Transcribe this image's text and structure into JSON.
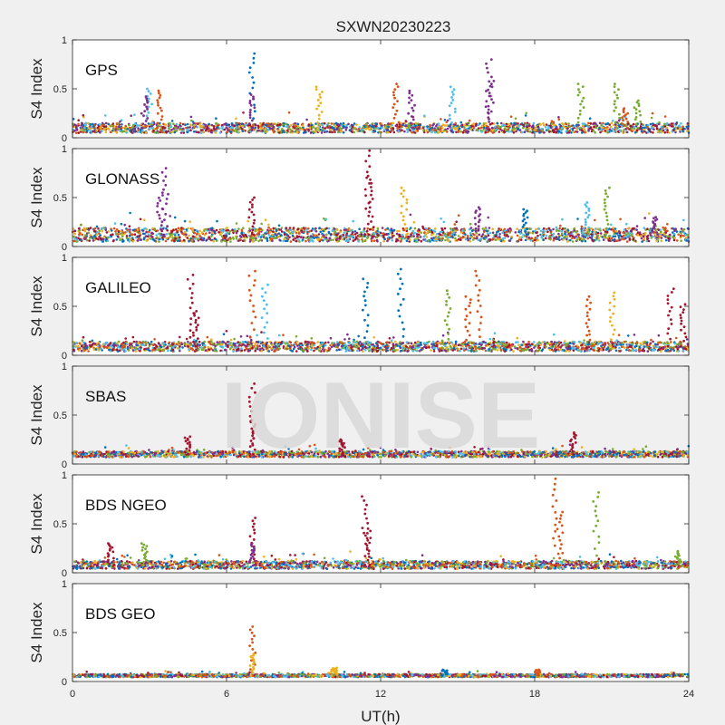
{
  "figure": {
    "title": "SXWN20230223",
    "xlabel": "UT(h)",
    "watermark": "IONISE"
  },
  "palette": [
    "#0072BD",
    "#D95319",
    "#EDB120",
    "#7E2F8E",
    "#77AC30",
    "#4DBEEE",
    "#A2142F"
  ],
  "chart_data": [
    {
      "type": "scatter",
      "label": "GPS",
      "ylabel": "S4 Index",
      "xlim": [
        0,
        24
      ],
      "ylim": [
        0,
        1
      ],
      "yticks": [
        0,
        0.5,
        1
      ],
      "baseline": 0.1,
      "noise": 0.05,
      "peaks": [
        {
          "x": 3.0,
          "y": 0.5,
          "color": 5
        },
        {
          "x": 3.4,
          "y": 0.48,
          "color": 1
        },
        {
          "x": 2.8,
          "y": 0.42,
          "color": 3
        },
        {
          "x": 7.0,
          "y": 0.86,
          "color": 0
        },
        {
          "x": 7.0,
          "y": 0.44,
          "color": 3
        },
        {
          "x": 9.6,
          "y": 0.52,
          "color": 2
        },
        {
          "x": 12.6,
          "y": 0.55,
          "color": 1
        },
        {
          "x": 13.2,
          "y": 0.48,
          "color": 3
        },
        {
          "x": 14.8,
          "y": 0.52,
          "color": 5
        },
        {
          "x": 16.2,
          "y": 0.8,
          "color": 3
        },
        {
          "x": 16.3,
          "y": 0.58,
          "color": 3
        },
        {
          "x": 19.8,
          "y": 0.55,
          "color": 4
        },
        {
          "x": 21.2,
          "y": 0.55,
          "color": 4
        },
        {
          "x": 22.0,
          "y": 0.38,
          "color": 4
        },
        {
          "x": 21.5,
          "y": 0.3,
          "color": 1
        }
      ]
    },
    {
      "type": "scatter",
      "label": "GLONASS",
      "ylabel": "S4 Index",
      "xlim": [
        0,
        24
      ],
      "ylim": [
        0,
        1
      ],
      "yticks": [
        0,
        0.5,
        1
      ],
      "baseline": 0.12,
      "noise": 0.07,
      "peaks": [
        {
          "x": 3.6,
          "y": 0.8,
          "color": 3
        },
        {
          "x": 3.4,
          "y": 0.55,
          "color": 3
        },
        {
          "x": 7.0,
          "y": 0.5,
          "color": 6
        },
        {
          "x": 11.5,
          "y": 0.98,
          "color": 6
        },
        {
          "x": 11.6,
          "y": 0.72,
          "color": 6
        },
        {
          "x": 12.9,
          "y": 0.6,
          "color": 2
        },
        {
          "x": 15.8,
          "y": 0.4,
          "color": 3
        },
        {
          "x": 17.6,
          "y": 0.38,
          "color": 0
        },
        {
          "x": 20.8,
          "y": 0.6,
          "color": 4
        },
        {
          "x": 20.0,
          "y": 0.45,
          "color": 5
        },
        {
          "x": 22.7,
          "y": 0.3,
          "color": 3
        }
      ]
    },
    {
      "type": "scatter",
      "label": "GALILEO",
      "ylabel": "S4 Index",
      "xlim": [
        0,
        24
      ],
      "ylim": [
        0,
        1
      ],
      "yticks": [
        0,
        0.5,
        1
      ],
      "baseline": 0.09,
      "noise": 0.05,
      "peaks": [
        {
          "x": 4.6,
          "y": 0.82,
          "color": 6
        },
        {
          "x": 4.8,
          "y": 0.45,
          "color": 6
        },
        {
          "x": 7.0,
          "y": 0.86,
          "color": 1
        },
        {
          "x": 7.5,
          "y": 0.72,
          "color": 5
        },
        {
          "x": 11.4,
          "y": 0.78,
          "color": 0
        },
        {
          "x": 12.8,
          "y": 0.88,
          "color": 0
        },
        {
          "x": 14.6,
          "y": 0.66,
          "color": 4
        },
        {
          "x": 15.8,
          "y": 0.86,
          "color": 1
        },
        {
          "x": 15.4,
          "y": 0.6,
          "color": 1
        },
        {
          "x": 20.1,
          "y": 0.6,
          "color": 1
        },
        {
          "x": 21.0,
          "y": 0.64,
          "color": 2
        },
        {
          "x": 23.3,
          "y": 0.68,
          "color": 6
        },
        {
          "x": 23.8,
          "y": 0.52,
          "color": 6
        }
      ]
    },
    {
      "type": "scatter",
      "label": "SBAS",
      "ylabel": "S4 Index",
      "xlim": [
        0,
        24
      ],
      "ylim": [
        0,
        1
      ],
      "yticks": [
        0,
        0.5,
        1
      ],
      "baseline": 0.1,
      "noise": 0.03,
      "peaks": [
        {
          "x": 7.0,
          "y": 0.82,
          "color": 6
        },
        {
          "x": 7.0,
          "y": 0.45,
          "color": 6
        },
        {
          "x": 4.5,
          "y": 0.28,
          "color": 6
        },
        {
          "x": 10.5,
          "y": 0.25,
          "color": 6
        },
        {
          "x": 19.5,
          "y": 0.32,
          "color": 6
        }
      ]
    },
    {
      "type": "scatter",
      "label": "BDS NGEO",
      "ylabel": "S4 Index",
      "xlim": [
        0,
        24
      ],
      "ylim": [
        0,
        1
      ],
      "yticks": [
        0,
        0.5,
        1
      ],
      "baseline": 0.08,
      "noise": 0.04,
      "peaks": [
        {
          "x": 1.5,
          "y": 0.3,
          "color": 6
        },
        {
          "x": 2.8,
          "y": 0.3,
          "color": 4
        },
        {
          "x": 7.0,
          "y": 0.56,
          "color": 6
        },
        {
          "x": 7.0,
          "y": 0.3,
          "color": 3
        },
        {
          "x": 11.4,
          "y": 0.78,
          "color": 6
        },
        {
          "x": 11.5,
          "y": 0.45,
          "color": 6
        },
        {
          "x": 18.8,
          "y": 0.96,
          "color": 1
        },
        {
          "x": 19.0,
          "y": 0.62,
          "color": 1
        },
        {
          "x": 20.4,
          "y": 0.82,
          "color": 4
        },
        {
          "x": 23.6,
          "y": 0.22,
          "color": 4
        }
      ]
    },
    {
      "type": "scatter",
      "label": "BDS GEO",
      "ylabel": "S4 Index",
      "xlim": [
        0,
        24
      ],
      "ylim": [
        0,
        1
      ],
      "yticks": [
        0,
        0.5,
        1
      ],
      "xticks": [
        0,
        6,
        12,
        18,
        24
      ],
      "baseline": 0.06,
      "noise": 0.015,
      "peaks": [
        {
          "x": 7.0,
          "y": 0.56,
          "color": 1
        },
        {
          "x": 7.0,
          "y": 0.28,
          "color": 2
        },
        {
          "x": 10.2,
          "y": 0.14,
          "color": 2
        },
        {
          "x": 14.5,
          "y": 0.12,
          "color": 0
        },
        {
          "x": 18.1,
          "y": 0.12,
          "color": 1
        }
      ]
    }
  ]
}
